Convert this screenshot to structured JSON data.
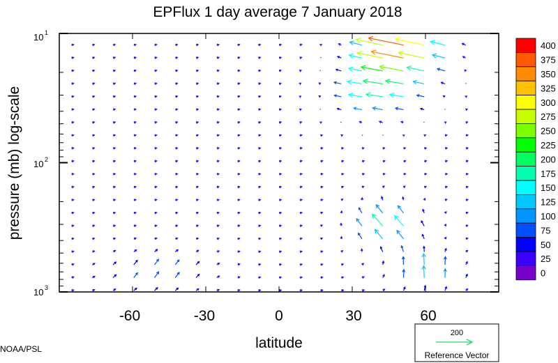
{
  "chart_data": {
    "type": "quiver",
    "title": "EPFlux  1 day average  7 January   2018",
    "xlabel": "latitude",
    "ylabel": "pressure (mb)  log-scale",
    "xlim": [
      -90,
      90
    ],
    "ylim": [
      1000,
      10
    ],
    "x_ticks": [
      {
        "value": -60,
        "label": "-60"
      },
      {
        "value": -30,
        "label": "-30"
      },
      {
        "value": 0,
        "label": "0"
      },
      {
        "value": 30,
        "label": "30"
      },
      {
        "value": 60,
        "label": "60"
      }
    ],
    "y_ticks": [
      {
        "value": 10,
        "base": "10",
        "exp": "1"
      },
      {
        "value": 100,
        "base": "10",
        "exp": "2"
      },
      {
        "value": 1000,
        "base": "10",
        "exp": "3"
      }
    ],
    "colorbar": {
      "labels": [
        "400",
        "375",
        "350",
        "325",
        "300",
        "275",
        "250",
        "225",
        "200",
        "175",
        "150",
        "125",
        "100",
        "75",
        "50",
        "25",
        "0"
      ],
      "colors": [
        "#ff0000",
        "#ff5a00",
        "#ff8c00",
        "#ffc000",
        "#ffff00",
        "#c8ff00",
        "#7dff00",
        "#00ff00",
        "#00ff60",
        "#00ffb0",
        "#00ffff",
        "#00c8ff",
        "#0096ff",
        "#0050ff",
        "#0000ff",
        "#3c00ff",
        "#7800c8"
      ]
    },
    "reference_vector": {
      "magnitude": "200",
      "label": "Reference Vector"
    },
    "credit": "NOAA/PSL",
    "vectors_note": "Eliassen-Palm flux vectors; strong poleward/equatorward flux 20-70N near 10-30 mb (magnitude up to ~400), moderate flux 30-70N in lower troposphere (~150-250), weak flux elsewhere (~0-75)."
  }
}
